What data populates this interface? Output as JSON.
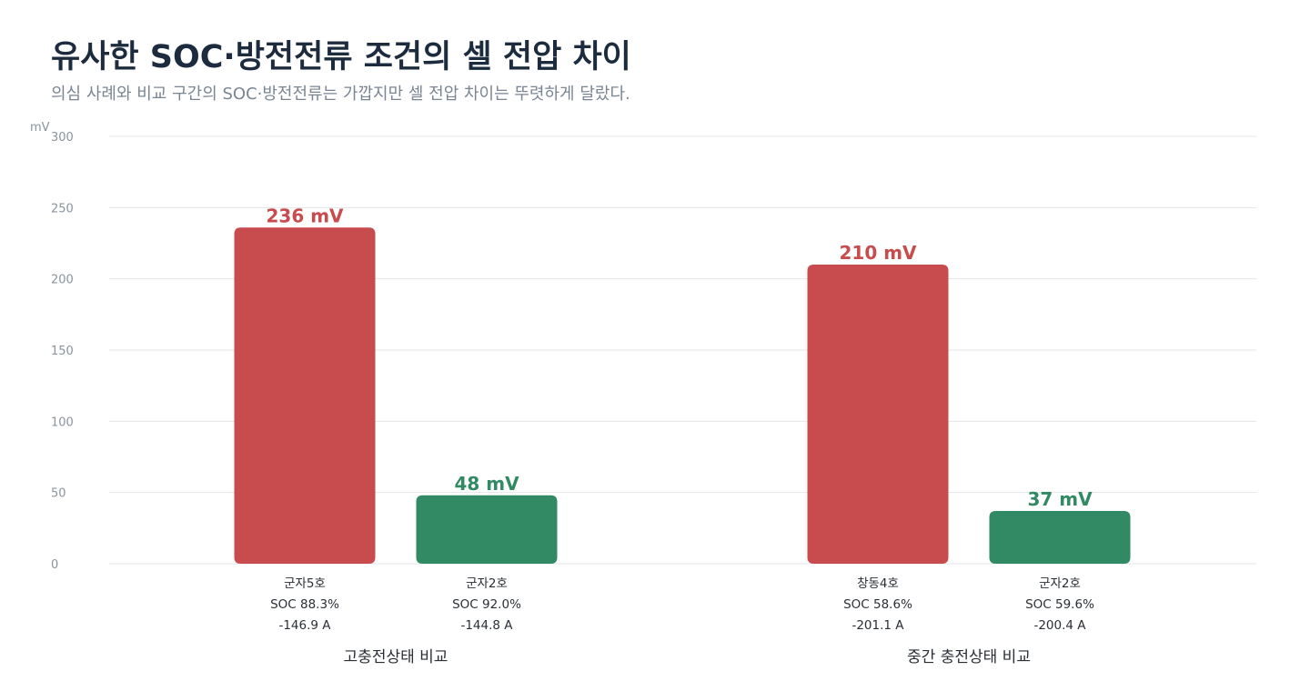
{
  "header": {
    "title": "유사한 SOC·방전전류 조건의 셀 전압 차이",
    "subtitle": "의심 사례와 비교 구간의 SOC·방전전류는 가깝지만 셀 전압 차이는 뚜렷하게 달랐다."
  },
  "colors": {
    "suspect": "#c84b4d",
    "normal": "#318a63",
    "grid": "#e3e6ea"
  },
  "chart_data": {
    "type": "bar",
    "ylabel": "mV",
    "ylim": [
      0,
      300
    ],
    "yticks": [
      0,
      50,
      100,
      150,
      200,
      250,
      300
    ],
    "grid": true,
    "groups": [
      {
        "label": "고충전상태 비교",
        "bars": [
          {
            "name": "군자5호",
            "soc": "SOC 88.3%",
            "current": "-146.9 A",
            "value": 236,
            "value_label": "236 mV",
            "kind": "suspect"
          },
          {
            "name": "군자2호",
            "soc": "SOC 92.0%",
            "current": "-144.8 A",
            "value": 48,
            "value_label": "48 mV",
            "kind": "normal"
          }
        ]
      },
      {
        "label": "중간 충전상태 비교",
        "bars": [
          {
            "name": "창동4호",
            "soc": "SOC 58.6%",
            "current": "-201.1 A",
            "value": 210,
            "value_label": "210 mV",
            "kind": "suspect"
          },
          {
            "name": "군자2호",
            "soc": "SOC 59.6%",
            "current": "-200.4 A",
            "value": 37,
            "value_label": "37 mV",
            "kind": "normal"
          }
        ]
      }
    ]
  }
}
